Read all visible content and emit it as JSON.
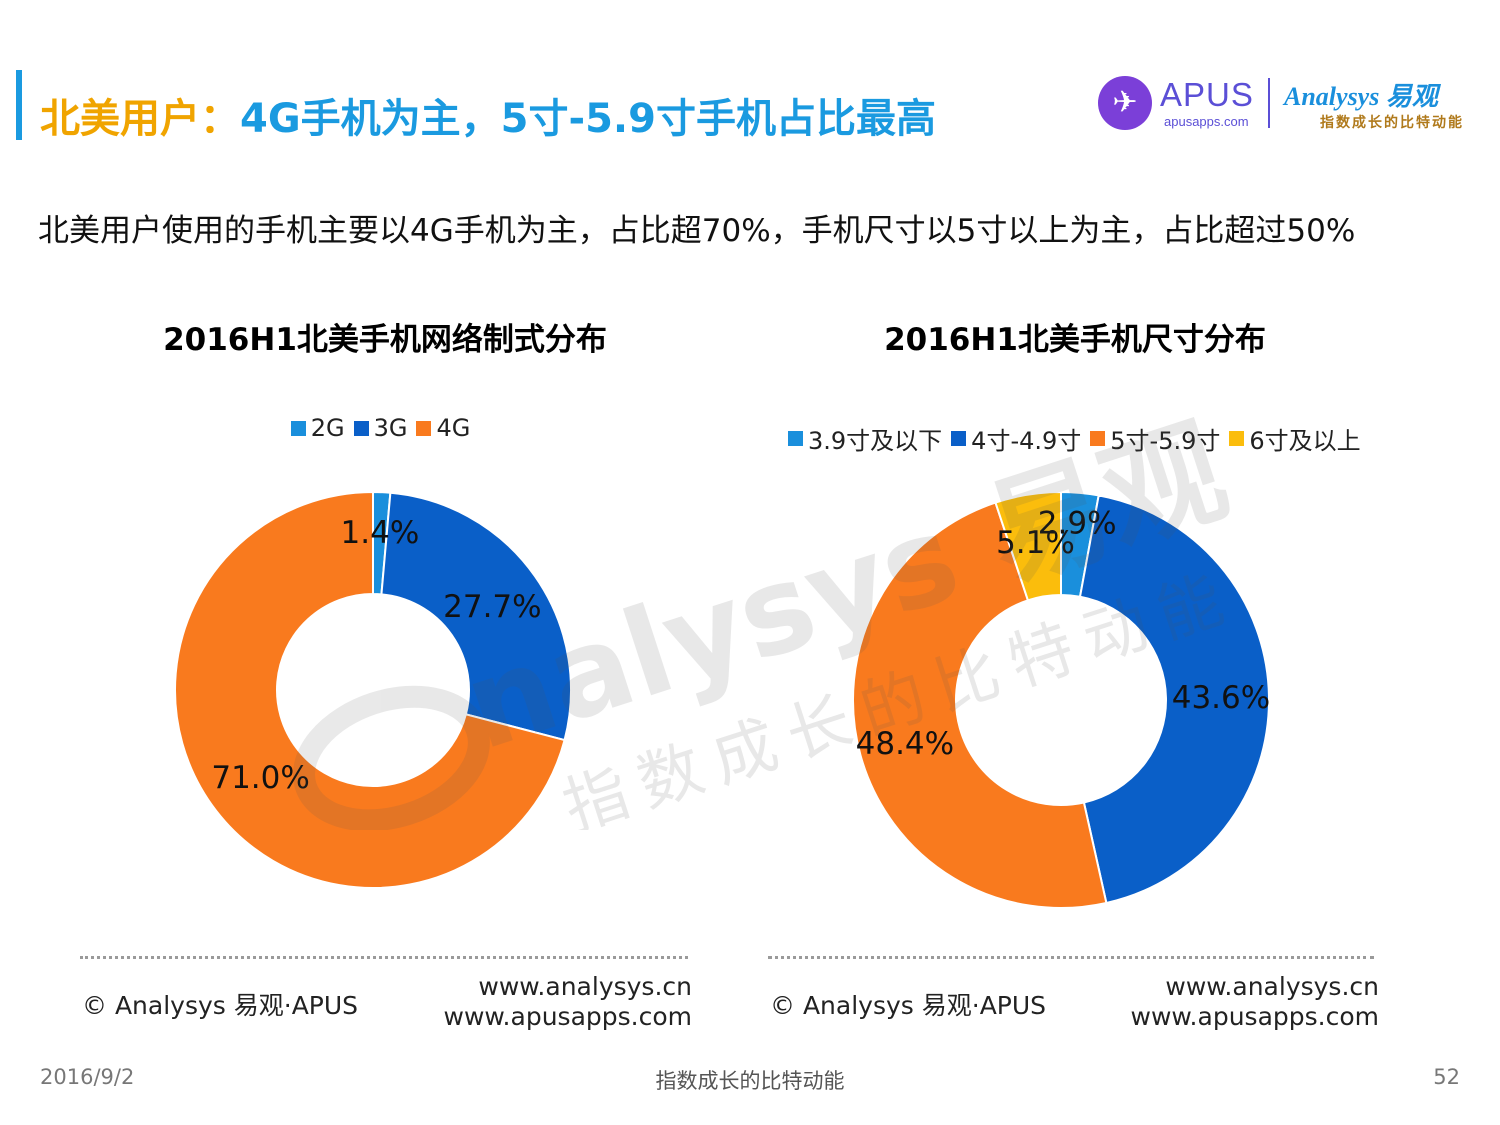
{
  "header": {
    "title_part1": "北美用户：",
    "title_part2": "4G手机为主，5寸-5.9寸手机占比最高",
    "accent_color": "#1a9ae0",
    "highlight_color": "#f0a400"
  },
  "logo": {
    "apus_name": "APUS",
    "apus_url": "apusapps.com",
    "analysys_name": "Analysys 易观",
    "analysys_tagline": "指数成长的比特动能"
  },
  "subtitle": "北美用户使用的手机主要以4G手机为主，占比超70%，手机尺寸以5寸以上为主，占比超过50%",
  "chart_data": [
    {
      "type": "pie",
      "title": "2016H1北美手机网络制式分布",
      "donut": true,
      "legend_position": "top",
      "categories": [
        "2G",
        "3G",
        "4G"
      ],
      "values": [
        1.4,
        27.7,
        71.0
      ],
      "labels": [
        "1.4%",
        "27.7%",
        "71.0%"
      ],
      "colors": [
        "#1a8fdc",
        "#0a5fc8",
        "#f97a1e"
      ]
    },
    {
      "type": "pie",
      "title": "2016H1北美手机尺寸分布",
      "donut": true,
      "legend_position": "top",
      "categories": [
        "3.9寸及以下",
        "4寸-4.9寸",
        "5寸-5.9寸",
        "6寸及以上"
      ],
      "values": [
        2.9,
        43.6,
        48.4,
        5.1
      ],
      "labels": [
        "2.9%",
        "43.6%",
        "48.4%",
        "5.1%"
      ],
      "colors": [
        "#1a8fdc",
        "#0a5fc8",
        "#f97a1e",
        "#fbbd0c"
      ]
    }
  ],
  "watermark": {
    "brand": "nalysys 易观",
    "tagline": "指数成长的比特动能"
  },
  "source": {
    "copyright": "© Analysys 易观·APUS",
    "url1": "www.analysys.cn",
    "url2": "www.apusapps.com"
  },
  "footer": {
    "date": "2016/9/2",
    "center": "指数成长的比特动能",
    "page": "52"
  }
}
